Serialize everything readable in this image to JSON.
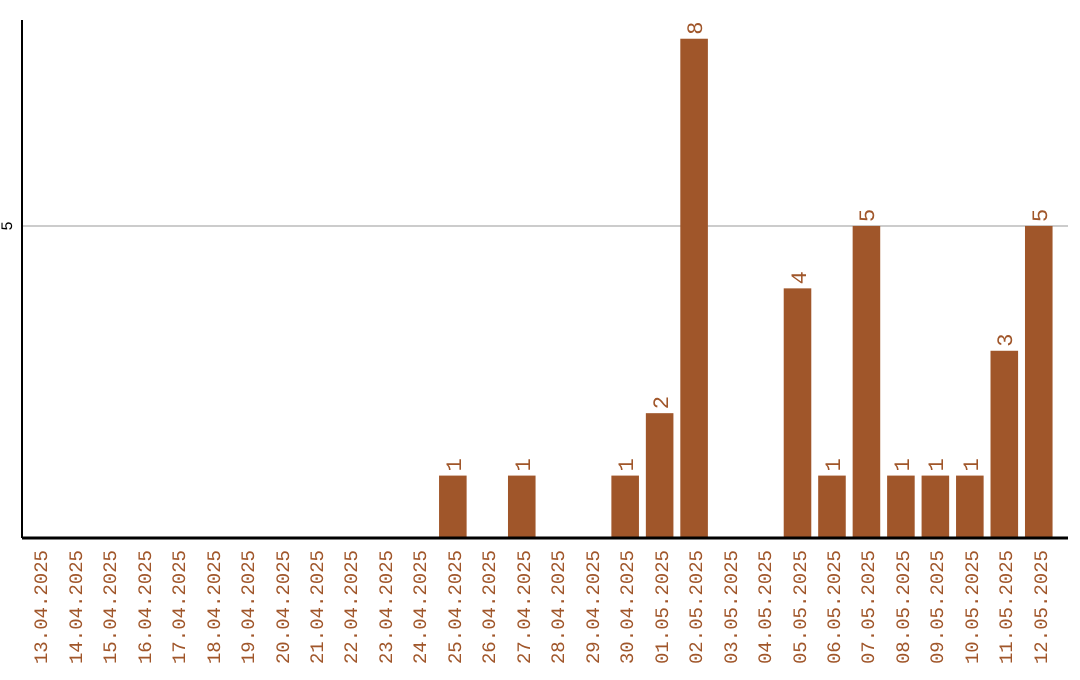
{
  "chart_data": {
    "type": "bar",
    "categories": [
      "13.04.2025",
      "14.04.2025",
      "15.04.2025",
      "16.04.2025",
      "17.04.2025",
      "18.04.2025",
      "19.04.2025",
      "20.04.2025",
      "21.04.2025",
      "22.04.2025",
      "23.04.2025",
      "24.04.2025",
      "25.04.2025",
      "26.04.2025",
      "27.04.2025",
      "28.04.2025",
      "29.04.2025",
      "30.04.2025",
      "01.05.2025",
      "02.05.2025",
      "03.05.2025",
      "04.05.2025",
      "05.05.2025",
      "06.05.2025",
      "07.05.2025",
      "08.05.2025",
      "09.05.2025",
      "10.05.2025",
      "11.05.2025",
      "12.05.2025"
    ],
    "values": [
      null,
      null,
      null,
      null,
      null,
      null,
      null,
      null,
      null,
      null,
      null,
      null,
      1,
      null,
      1,
      null,
      null,
      1,
      2,
      8,
      null,
      null,
      4,
      1,
      5,
      1,
      1,
      1,
      3,
      5
    ],
    "value_labels": [
      null,
      null,
      null,
      null,
      null,
      null,
      null,
      null,
      null,
      null,
      null,
      null,
      "1",
      null,
      "1",
      null,
      null,
      "1",
      "2",
      "8",
      null,
      null,
      "4",
      "1",
      "5",
      "1",
      "1",
      "1",
      "3",
      "5"
    ],
    "color": "#a0562a",
    "ylim": [
      0,
      8.3
    ],
    "ref_lines": [
      {
        "axis": "y",
        "value": 5,
        "label": "5",
        "color": "#cccccc"
      }
    ]
  }
}
